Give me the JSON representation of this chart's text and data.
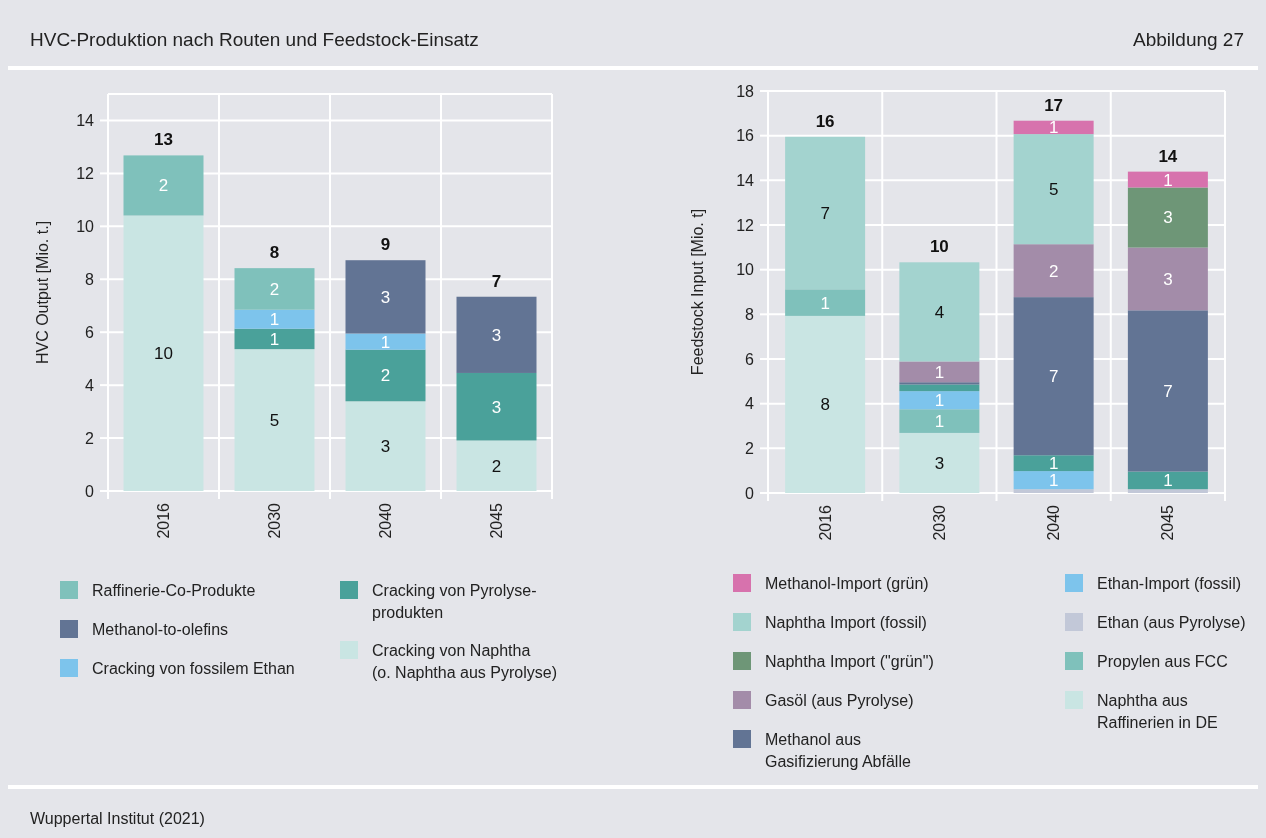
{
  "chart_data": [
    {
      "type": "bar",
      "title": "HVC-Produktion nach Routen und Feedstock-Einsatz",
      "ylabel": "HVC Output [Mio. t.]",
      "categories": [
        "2016",
        "2030",
        "2040",
        "2045"
      ],
      "stacked": true,
      "ylim": [
        0,
        15
      ],
      "yticks": [
        0,
        2,
        4,
        6,
        8,
        10,
        12,
        14
      ],
      "grid": true,
      "legend": "bottom",
      "totals": [
        "13",
        "8",
        "9",
        "7"
      ],
      "series": [
        {
          "name": "Cracking von Naphtha\n(o. Naphtha aus Pyrolyse)",
          "color": "#c9e5e3",
          "values": [
            10.41,
            5.36,
            3.39,
            1.91
          ],
          "value_labels": [
            "10",
            "5",
            "3",
            "2"
          ]
        },
        {
          "name": "Cracking von Pyrolyse-\nprodukten",
          "color": "#4aa19a",
          "values": [
            null,
            0.77,
            1.95,
            2.55
          ],
          "value_labels": [
            null,
            "1",
            "2",
            "3"
          ]
        },
        {
          "name": "Cracking von fossilem Ethan",
          "color": "#7dc4ec",
          "values": [
            null,
            0.72,
            0.61,
            null
          ],
          "value_labels": [
            null,
            "1",
            "1",
            null
          ]
        },
        {
          "name": "Methanol-to-olefins",
          "color": "#627494",
          "values": [
            null,
            null,
            2.77,
            2.88
          ],
          "value_labels": [
            null,
            null,
            "3",
            "3"
          ]
        },
        {
          "name": "Raffinerie-Co-Produkte",
          "color": "#7fc1bb",
          "values": [
            2.27,
            1.57,
            null,
            null
          ],
          "value_labels": [
            "2",
            "2",
            null,
            null
          ]
        }
      ]
    },
    {
      "type": "bar",
      "ylabel": "Feedstock Input [Mio. t]",
      "categories": [
        "2016",
        "2030",
        "2040",
        "2045"
      ],
      "stacked": true,
      "ylim": [
        0,
        18
      ],
      "yticks": [
        0,
        2,
        4,
        6,
        8,
        10,
        12,
        14,
        16,
        18
      ],
      "grid": true,
      "legend": "bottom",
      "totals": [
        "16",
        "10",
        "17",
        "14"
      ],
      "annotations": [
        "Abbildung 27",
        "Wuppertal Institut (2021)"
      ],
      "series": [
        {
          "name": "Naphtha aus\nRaffinerien in DE",
          "color": "#c9e5e3",
          "values": [
            7.93,
            2.69,
            null,
            null
          ],
          "value_labels": [
            "8",
            "3",
            null,
            null
          ]
        },
        {
          "name": "Propylen aus FCC",
          "color": "#7fc1bb",
          "values": [
            1.19,
            1.06,
            null,
            null
          ],
          "value_labels": [
            "1",
            "1",
            null,
            null
          ]
        },
        {
          "name": "Ethan (aus Pyrolyse)",
          "color": "#c2c8d8",
          "values": [
            null,
            null,
            0.17,
            0.17
          ],
          "value_labels": [
            null,
            null,
            null,
            null
          ]
        },
        {
          "name": "Ethan-Import (fossil)",
          "color": "#7dc4ec",
          "values": [
            null,
            0.81,
            0.81,
            null
          ],
          "value_labels": [
            null,
            "1",
            "1",
            null
          ]
        },
        {
          "color": "#4aa19a",
          "values": [
            null,
            0.3,
            0.71,
            0.79
          ],
          "value_labels": [
            null,
            null,
            "1",
            "1"
          ]
        },
        {
          "name": "Methanol aus\nGasifizierung Abfälle",
          "color": "#627494",
          "values": [
            null,
            0.1,
            7.08,
            7.22
          ],
          "value_labels": [
            null,
            null,
            "7",
            "7"
          ]
        },
        {
          "name": "Gasöl (aus Pyrolyse)",
          "color": "#a38ca9",
          "values": [
            null,
            0.93,
            2.37,
            2.81
          ],
          "value_labels": [
            null,
            "1",
            "2",
            "3"
          ]
        },
        {
          "name": "Naphtha Import (\"grün\")",
          "color": "#6e9677",
          "values": [
            null,
            null,
            null,
            2.69
          ],
          "value_labels": [
            null,
            null,
            null,
            "3"
          ]
        },
        {
          "name": "Naphtha Import (fossil)",
          "color": "#a3d3cf",
          "values": [
            6.83,
            4.44,
            4.93,
            null
          ],
          "value_labels": [
            "7",
            "4",
            "5",
            null
          ]
        },
        {
          "name": "Methanol-Import (grün)",
          "color": "#d772ad",
          "values": [
            null,
            null,
            0.6,
            0.71
          ],
          "value_labels": [
            null,
            null,
            "1",
            "1"
          ]
        }
      ]
    }
  ]
}
